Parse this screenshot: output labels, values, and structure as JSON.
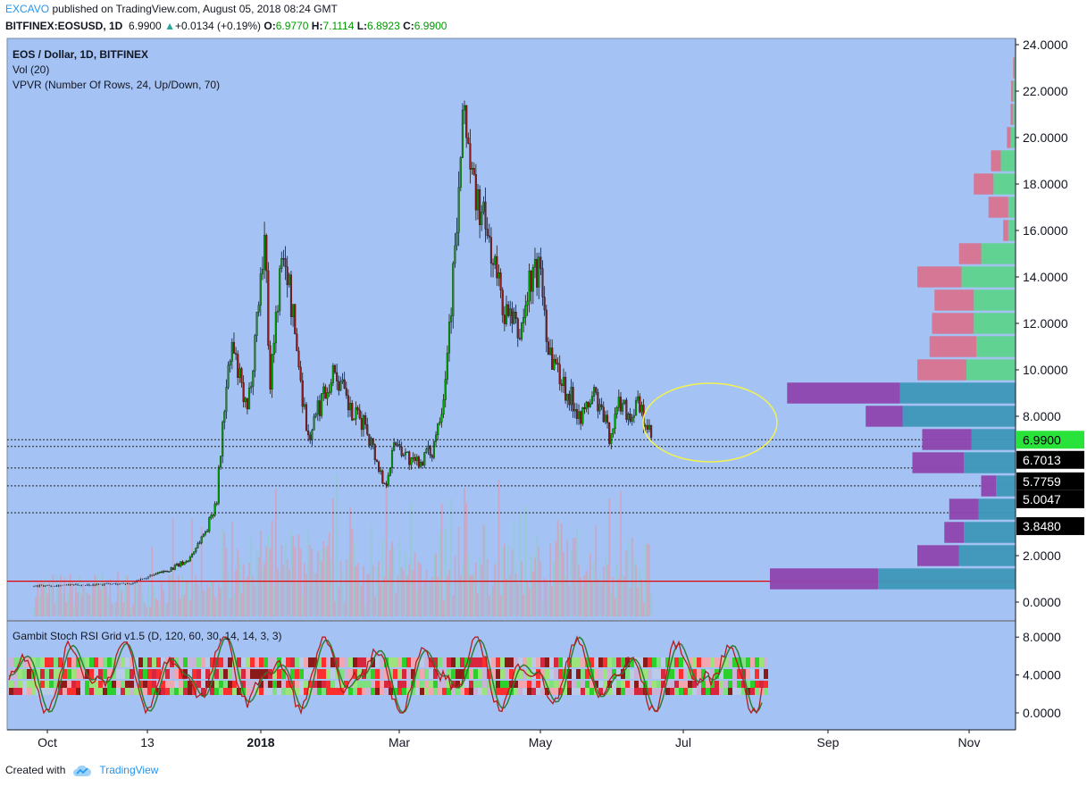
{
  "header": {
    "author": "EXCAVO",
    "published_text": "published on TradingView.com, August 05, 2018 08:24 GMT",
    "symbol": "BITFINEX:EOSUSD, 1D",
    "last": "6.9900",
    "change": "+0.0134 (+0.19%)",
    "o_label": "O:",
    "o": "6.9770",
    "h_label": "H:",
    "h": "7.1114",
    "l_label": "L:",
    "l": "6.8923",
    "c_label": "C:",
    "c": "6.9900"
  },
  "legend": {
    "line1": "EOS / Dollar, 1D, BITFINEX",
    "line2": "Vol (20)",
    "line3": "VPVR (Number Of Rows, 24, Up/Down, 70)",
    "indicator": "Gambit Stoch RSI Grid v1.5 (D, 120, 60, 30, 14, 14, 3, 3)"
  },
  "footer": {
    "created_with": "Created with",
    "brand": "TradingView"
  },
  "colors": {
    "background": "#a4c2f4",
    "up": "#00a300",
    "down": "#8b1a1a",
    "support_line": "#e00000",
    "ellipse": "#f2f250",
    "vp_up": "#5fd38d",
    "vp_down": "#d9738f",
    "vp_va_up": "#3d97b8",
    "vp_va_down": "#8e44ad"
  },
  "chart_data": {
    "type": "candlestick",
    "title": "EOS / Dollar, 1D, BITFINEX",
    "x_ticks": [
      "Oct",
      "13",
      "2018",
      "Mar",
      "May",
      "Jul",
      "Sep",
      "Nov"
    ],
    "y_ticks": [
      "24.0000",
      "22.0000",
      "20.0000",
      "18.0000",
      "16.0000",
      "14.0000",
      "12.0000",
      "10.0000",
      "8.0000",
      "2.0000",
      "0.0000"
    ],
    "ylim": [
      -0.7,
      24.3
    ],
    "price_key_points": [
      {
        "date": "2017-09-15",
        "close": 0.7
      },
      {
        "date": "2017-10-15",
        "close": 0.75
      },
      {
        "date": "2017-11-05",
        "close": 0.8
      },
      {
        "date": "2017-11-25",
        "close": 1.4
      },
      {
        "date": "2017-12-05",
        "close": 1.8
      },
      {
        "date": "2017-12-15",
        "close": 3.2
      },
      {
        "date": "2017-12-20",
        "close": 4.5
      },
      {
        "date": "2017-12-24",
        "close": 8.5
      },
      {
        "date": "2017-12-28",
        "close": 11.0
      },
      {
        "date": "2018-01-05",
        "close": 8.0
      },
      {
        "date": "2018-01-12",
        "close": 14.0
      },
      {
        "date": "2018-01-14",
        "close": 15.8
      },
      {
        "date": "2018-01-17",
        "close": 9.5
      },
      {
        "date": "2018-01-22",
        "close": 14.0
      },
      {
        "date": "2018-01-25",
        "close": 14.8
      },
      {
        "date": "2018-02-06",
        "close": 7.0
      },
      {
        "date": "2018-02-14",
        "close": 9.0
      },
      {
        "date": "2018-02-20",
        "close": 10.0
      },
      {
        "date": "2018-03-01",
        "close": 8.0
      },
      {
        "date": "2018-03-08",
        "close": 7.7
      },
      {
        "date": "2018-03-18",
        "close": 5.0
      },
      {
        "date": "2018-03-24",
        "close": 7.0
      },
      {
        "date": "2018-04-02",
        "close": 5.9
      },
      {
        "date": "2018-04-12",
        "close": 6.5
      },
      {
        "date": "2018-04-18",
        "close": 9.0
      },
      {
        "date": "2018-04-24",
        "close": 15.0
      },
      {
        "date": "2018-04-29",
        "close": 21.4
      },
      {
        "date": "2018-05-03",
        "close": 18.0
      },
      {
        "date": "2018-05-12",
        "close": 15.5
      },
      {
        "date": "2018-05-20",
        "close": 12.5
      },
      {
        "date": "2018-05-28",
        "close": 11.5
      },
      {
        "date": "2018-06-03",
        "close": 14.0
      },
      {
        "date": "2018-06-08",
        "close": 14.3
      },
      {
        "date": "2018-06-12",
        "close": 11.0
      },
      {
        "date": "2018-06-22",
        "close": 9.0
      },
      {
        "date": "2018-06-30",
        "close": 8.0
      },
      {
        "date": "2018-07-06",
        "close": 9.0
      },
      {
        "date": "2018-07-14",
        "close": 7.2
      },
      {
        "date": "2018-07-20",
        "close": 8.7
      },
      {
        "date": "2018-07-25",
        "close": 8.0
      },
      {
        "date": "2018-07-29",
        "close": 8.5
      },
      {
        "date": "2018-08-05",
        "close": 6.99
      }
    ],
    "price_labels": [
      {
        "value": 6.99,
        "text": "6.9900",
        "kind": "last"
      },
      {
        "value": 6.7013,
        "text": "6.7013",
        "kind": "level"
      },
      {
        "value": 5.7759,
        "text": "5.7759",
        "kind": "level"
      },
      {
        "value": 5.0047,
        "text": "5.0047",
        "kind": "level"
      },
      {
        "value": 3.848,
        "text": "3.8480",
        "kind": "level"
      }
    ],
    "support_line": 0.9,
    "volume_profile": [
      {
        "price": 1,
        "up": 5.6,
        "down": 4.4,
        "value_area": true
      },
      {
        "price": 2,
        "up": 2.3,
        "down": 1.7,
        "value_area": true
      },
      {
        "price": 3,
        "up": 2.1,
        "down": 0.8,
        "value_area": true
      },
      {
        "price": 4,
        "up": 1.5,
        "down": 1.2,
        "value_area": true
      },
      {
        "price": 5,
        "up": 0.8,
        "down": 0.6,
        "value_area": true
      },
      {
        "price": 6,
        "up": 2.1,
        "down": 2.1,
        "value_area": true
      },
      {
        "price": 7,
        "up": 1.8,
        "down": 2.0,
        "value_area": true
      },
      {
        "price": 8,
        "up": 4.6,
        "down": 1.5,
        "value_area": true
      },
      {
        "price": 9,
        "up": 4.7,
        "down": 4.6,
        "value_area": true
      },
      {
        "price": 10,
        "up": 2.0,
        "down": 2.0,
        "value_area": false
      },
      {
        "price": 11,
        "up": 1.6,
        "down": 1.9,
        "value_area": false
      },
      {
        "price": 12,
        "up": 1.7,
        "down": 1.7,
        "value_area": false
      },
      {
        "price": 13,
        "up": 1.7,
        "down": 1.6,
        "value_area": false
      },
      {
        "price": 14,
        "up": 2.2,
        "down": 1.8,
        "value_area": false
      },
      {
        "price": 15,
        "up": 1.4,
        "down": 0.9,
        "value_area": false
      },
      {
        "price": 16,
        "up": 0.3,
        "down": 0.2,
        "value_area": false
      },
      {
        "price": 17,
        "up": 0.3,
        "down": 0.8,
        "value_area": false
      },
      {
        "price": 18,
        "up": 0.9,
        "down": 0.8,
        "value_area": false
      },
      {
        "price": 19,
        "up": 0.6,
        "down": 0.4,
        "value_area": false
      },
      {
        "price": 20,
        "up": 0.2,
        "down": 0.15,
        "value_area": false
      },
      {
        "price": 21,
        "up": 0.1,
        "down": 0.1,
        "value_area": false
      },
      {
        "price": 22,
        "up": 0.1,
        "down": 0.08,
        "value_area": false
      },
      {
        "price": 23,
        "up": 0.05,
        "down": 0.05,
        "value_area": false
      }
    ],
    "indicator": {
      "title": "Gambit Stoch RSI Grid v1.5 (D, 120, 60, 30, 14, 14, 3, 3)",
      "y_ticks": [
        "8.0000",
        "4.0000",
        "0.0000"
      ],
      "ylim": [
        -1.5,
        9
      ]
    }
  }
}
